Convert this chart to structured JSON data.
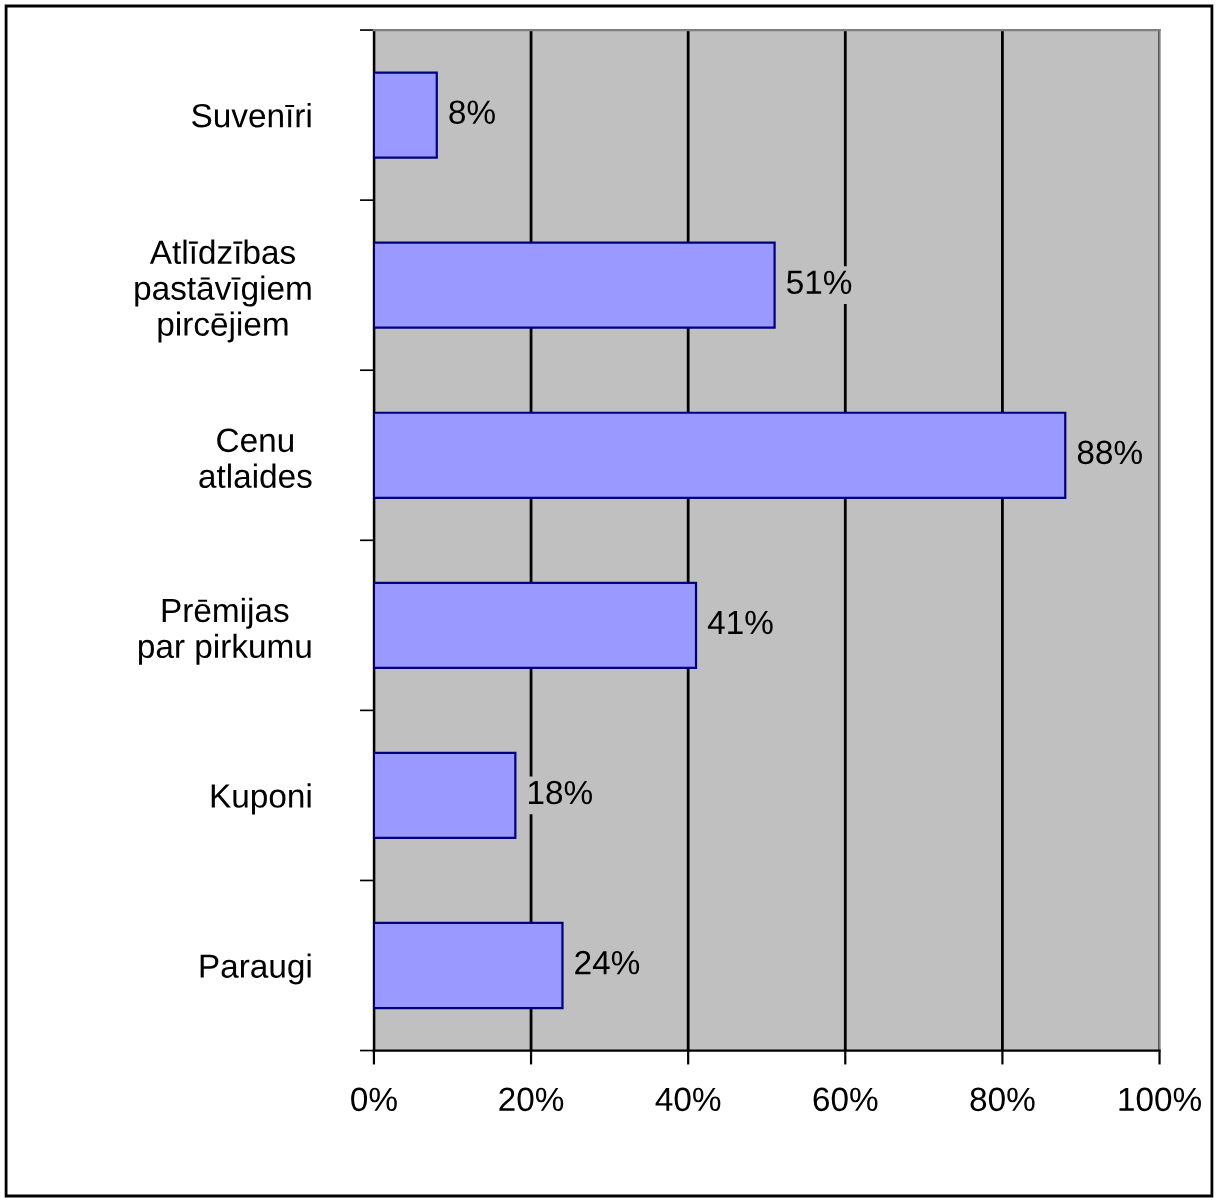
{
  "chart_data": {
    "type": "bar",
    "orientation": "horizontal",
    "categories": [
      "Suvenīri",
      "Atlīdzības\npastāvīgiem\npircējiem",
      "Cenu\natlaides",
      "Prēmijas\npar pirkumu",
      "Kuponi",
      "Paraugi"
    ],
    "values": [
      8,
      51,
      88,
      41,
      18,
      24
    ],
    "value_labels": [
      "8%",
      "51%",
      "88%",
      "41%",
      "18%",
      "24%"
    ],
    "color": "#9999ff",
    "xlim": [
      0,
      100
    ],
    "xticks": [
      {
        "value": 0,
        "label": "0%"
      },
      {
        "value": 20,
        "label": "20%"
      },
      {
        "value": 40,
        "label": "40%"
      },
      {
        "value": 60,
        "label": "60%"
      },
      {
        "value": 80,
        "label": "80%"
      },
      {
        "value": 100,
        "label": "100%"
      }
    ],
    "grid": "x"
  }
}
